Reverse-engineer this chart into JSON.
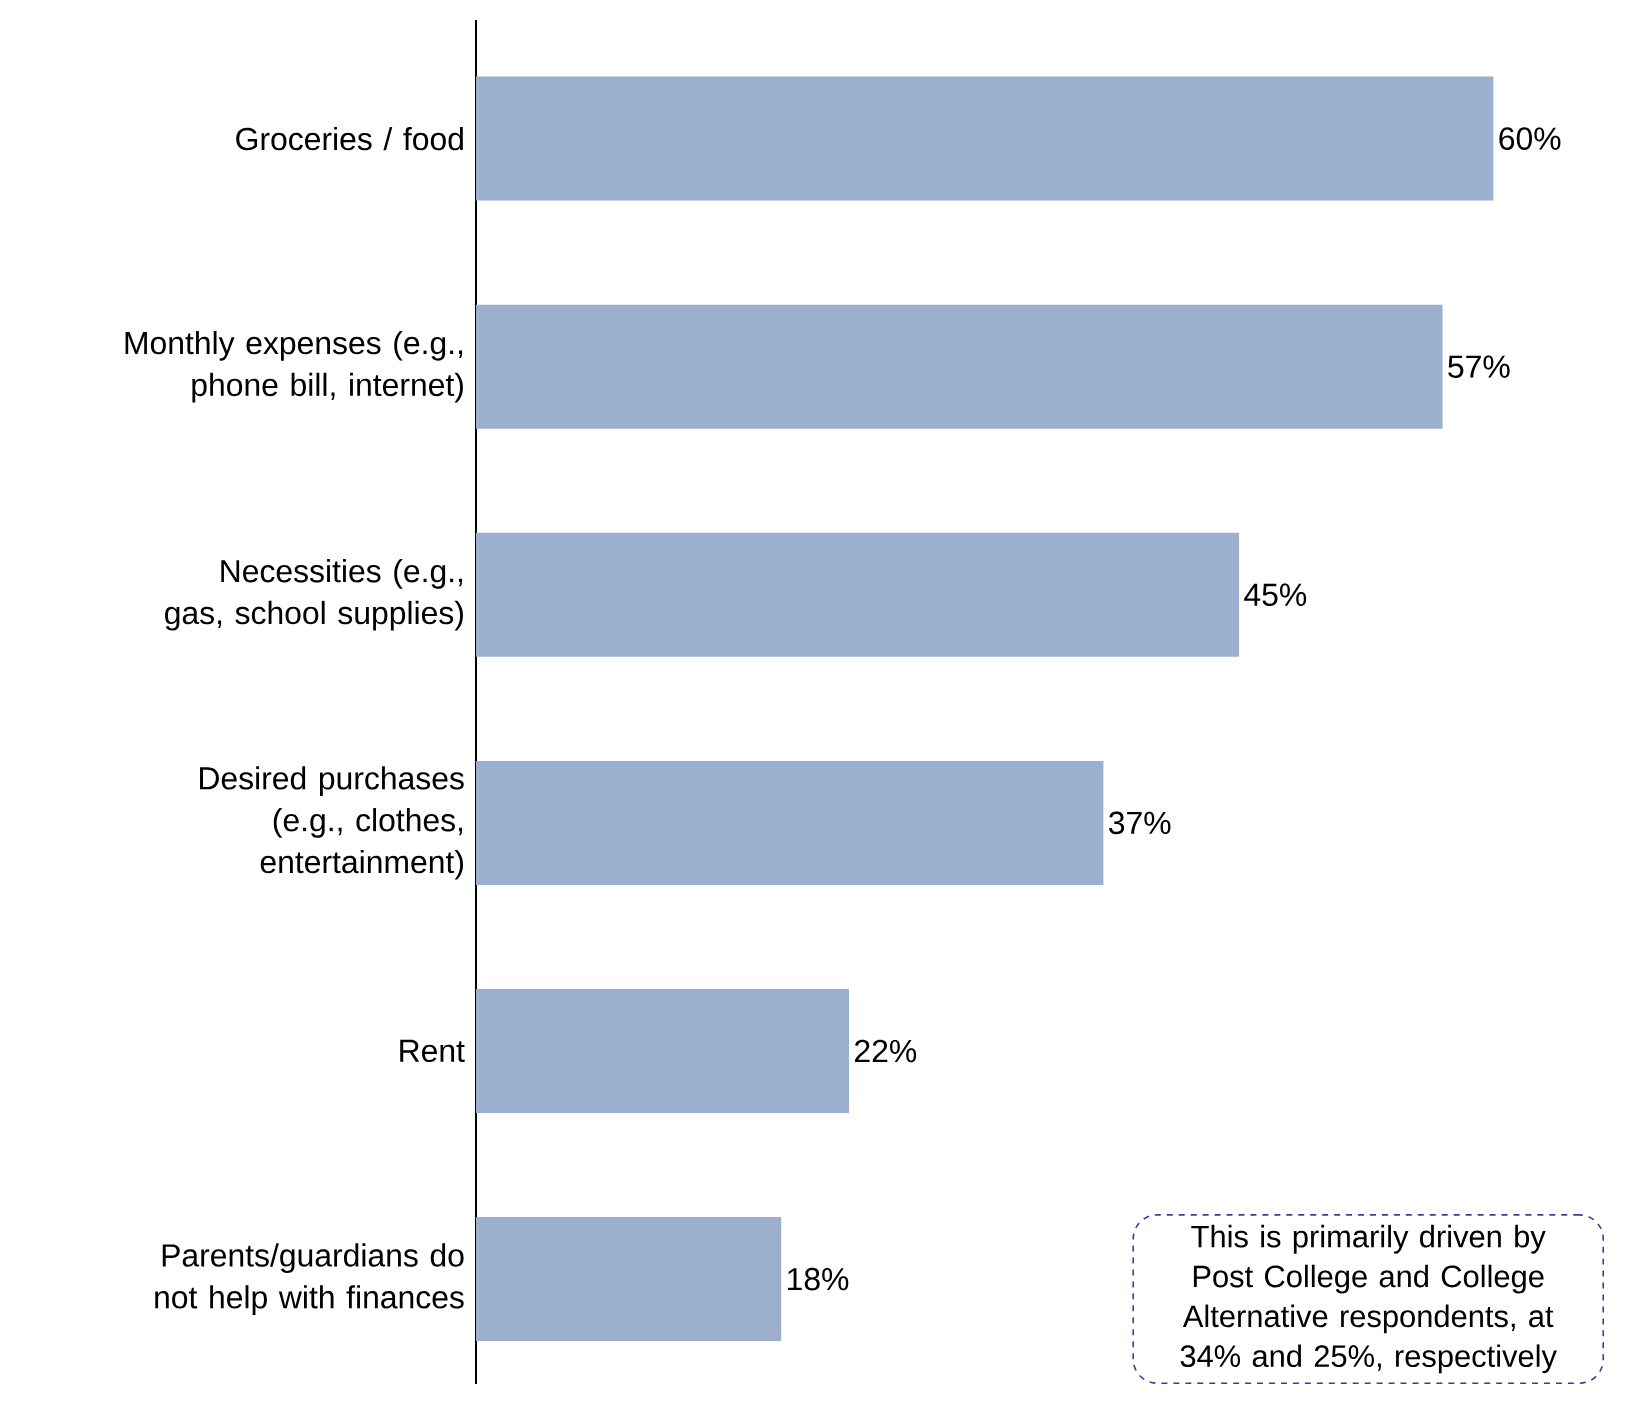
{
  "chart_data": {
    "type": "bar",
    "orientation": "horizontal",
    "categories": [
      "Groceries / food",
      "Monthly expenses (e.g., phone bill, internet)",
      "Necessities (e.g., gas, school supplies)",
      "Desired purchases (e.g., clothes, entertainment)",
      "Rent",
      "Parents/guardians do not help with finances"
    ],
    "values": [
      60,
      57,
      45,
      37,
      22,
      18
    ],
    "value_labels": [
      "60%",
      "57%",
      "45%",
      "37%",
      "22%",
      "18%"
    ],
    "color": "#9cafcf",
    "annotations": [
      "This is primarily driven by Post College and College Alternative respondents, at 34% and 25%, respectively"
    ]
  }
}
